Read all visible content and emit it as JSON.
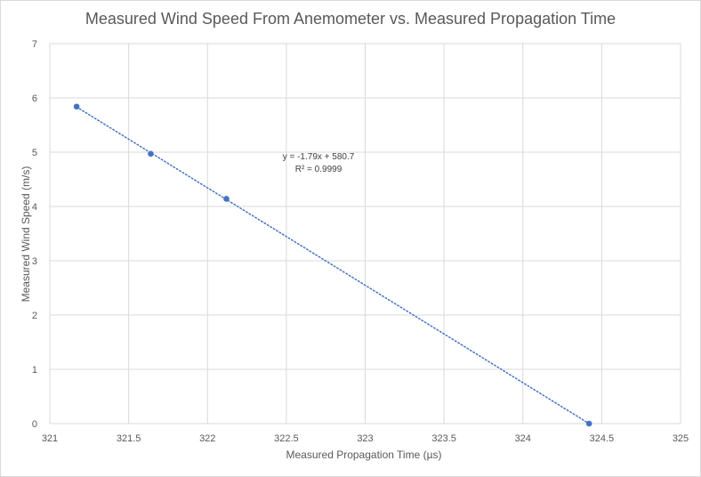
{
  "chart_data": {
    "type": "scatter",
    "title": "Measured Wind Speed From Anemometer vs. Measured Propagation Time",
    "xlabel": "Measured Propagation Time (µs)",
    "ylabel": "Measured Wind Speed (m/s)",
    "xlim": [
      321,
      325
    ],
    "ylim": [
      0,
      7
    ],
    "x_ticks": [
      "321",
      "321.5",
      "322",
      "322.5",
      "323",
      "323.5",
      "324",
      "324.5",
      "325"
    ],
    "y_ticks": [
      "0",
      "1",
      "2",
      "3",
      "4",
      "5",
      "6",
      "7"
    ],
    "grid": true,
    "legend": "none",
    "series": [
      {
        "x": [
          321.17,
          321.64,
          322.12,
          324.42
        ],
        "y": [
          5.84,
          4.97,
          4.14,
          0.0
        ],
        "color": "#4472c4",
        "trendline": {
          "type": "linear",
          "style": "dotted",
          "color": "#4472c4",
          "slope": -1.79,
          "intercept": 580.7
        }
      }
    ],
    "annotation": {
      "equation": "y = -1.79x + 580.7",
      "r_squared": "R² = 0.9999"
    }
  }
}
